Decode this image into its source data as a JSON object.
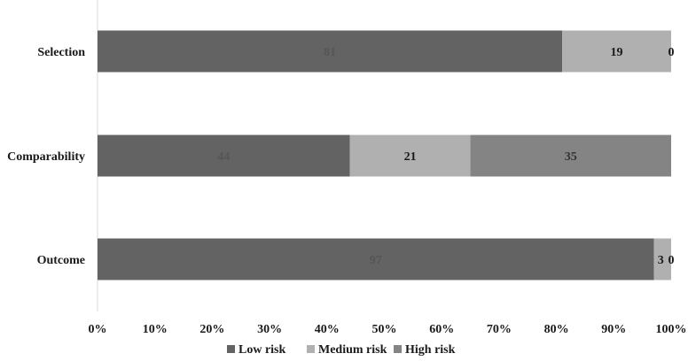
{
  "chart_data": {
    "type": "bar",
    "orientation": "horizontal",
    "stacked": "percent",
    "categories": [
      "Selection",
      "Comparability",
      "Outcome"
    ],
    "series": [
      {
        "name": "Low risk",
        "values": [
          81,
          44,
          97
        ],
        "color": "#636363",
        "label_color": "#555555"
      },
      {
        "name": "Medium risk",
        "values": [
          19,
          21,
          3
        ],
        "color": "#b0b0b0",
        "label_color": "#1a1a1a"
      },
      {
        "name": "High risk",
        "values": [
          0,
          35,
          0
        ],
        "color": "#848484",
        "label_color": "#333333"
      }
    ],
    "data_labels": [
      [
        "81",
        "19",
        "0"
      ],
      [
        "44",
        "21",
        "35"
      ],
      [
        "97",
        "3",
        "0"
      ]
    ],
    "xlim": [
      0,
      100
    ],
    "xticks": [
      "0%",
      "10%",
      "20%",
      "30%",
      "40%",
      "50%",
      "60%",
      "70%",
      "80%",
      "90%",
      "100%"
    ],
    "title": "",
    "xlabel": "",
    "ylabel": "",
    "grid": false,
    "legend": "bottom"
  }
}
